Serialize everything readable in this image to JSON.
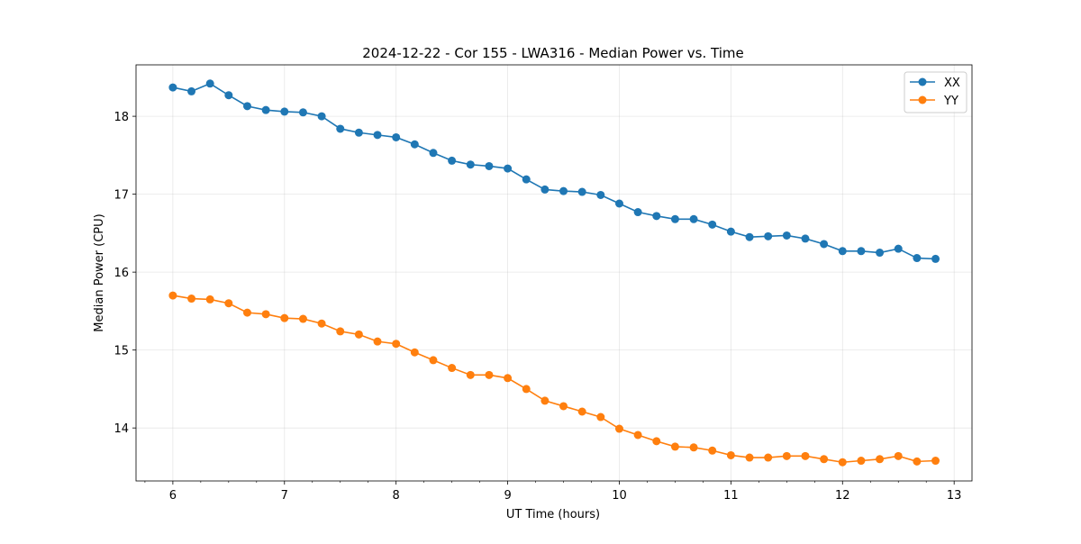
{
  "chart_data": {
    "type": "line",
    "title": "2024-12-22 - Cor 155 - LWA316 - Median Power vs. Time",
    "xlabel": "UT Time (hours)",
    "ylabel": "Median Power (CPU)",
    "xlim": [
      5.67,
      13.16
    ],
    "ylim": [
      13.32,
      18.66
    ],
    "xticks": [
      6,
      7,
      8,
      9,
      10,
      11,
      12,
      13
    ],
    "yticks": [
      14,
      15,
      16,
      17,
      18
    ],
    "grid": true,
    "legend_position": "top-right",
    "x": [
      6.0,
      6.1667,
      6.3333,
      6.5,
      6.6667,
      6.8333,
      7.0,
      7.1667,
      7.3333,
      7.5,
      7.6667,
      7.8333,
      8.0,
      8.1667,
      8.3333,
      8.5,
      8.6667,
      8.8333,
      9.0,
      9.1667,
      9.3333,
      9.5,
      9.6667,
      9.8333,
      10.0,
      10.1667,
      10.3333,
      10.5,
      10.6667,
      10.8333,
      11.0,
      11.1667,
      11.3333,
      11.5,
      11.6667,
      11.8333,
      12.0,
      12.1667,
      12.3333,
      12.5,
      12.6667,
      12.8333
    ],
    "series": [
      {
        "name": "XX",
        "color": "#1f77b4",
        "values": [
          18.37,
          18.32,
          18.42,
          18.27,
          18.13,
          18.08,
          18.06,
          18.05,
          18.0,
          17.84,
          17.79,
          17.76,
          17.73,
          17.64,
          17.53,
          17.43,
          17.38,
          17.36,
          17.33,
          17.19,
          17.06,
          17.04,
          17.03,
          16.99,
          16.88,
          16.77,
          16.72,
          16.68,
          16.68,
          16.61,
          16.52,
          16.45,
          16.46,
          16.47,
          16.43,
          16.36,
          16.27,
          16.27,
          16.25,
          16.3,
          16.18,
          16.17
        ]
      },
      {
        "name": "YY",
        "color": "#ff7f0e",
        "values": [
          15.7,
          15.66,
          15.65,
          15.6,
          15.48,
          15.46,
          15.41,
          15.4,
          15.34,
          15.24,
          15.2,
          15.11,
          15.08,
          14.97,
          14.87,
          14.77,
          14.68,
          14.68,
          14.64,
          14.5,
          14.35,
          14.28,
          14.21,
          14.14,
          13.99,
          13.91,
          13.83,
          13.76,
          13.75,
          13.71,
          13.65,
          13.62,
          13.62,
          13.64,
          13.64,
          13.6,
          13.56,
          13.58,
          13.6,
          13.64,
          13.57,
          13.58
        ]
      }
    ]
  }
}
